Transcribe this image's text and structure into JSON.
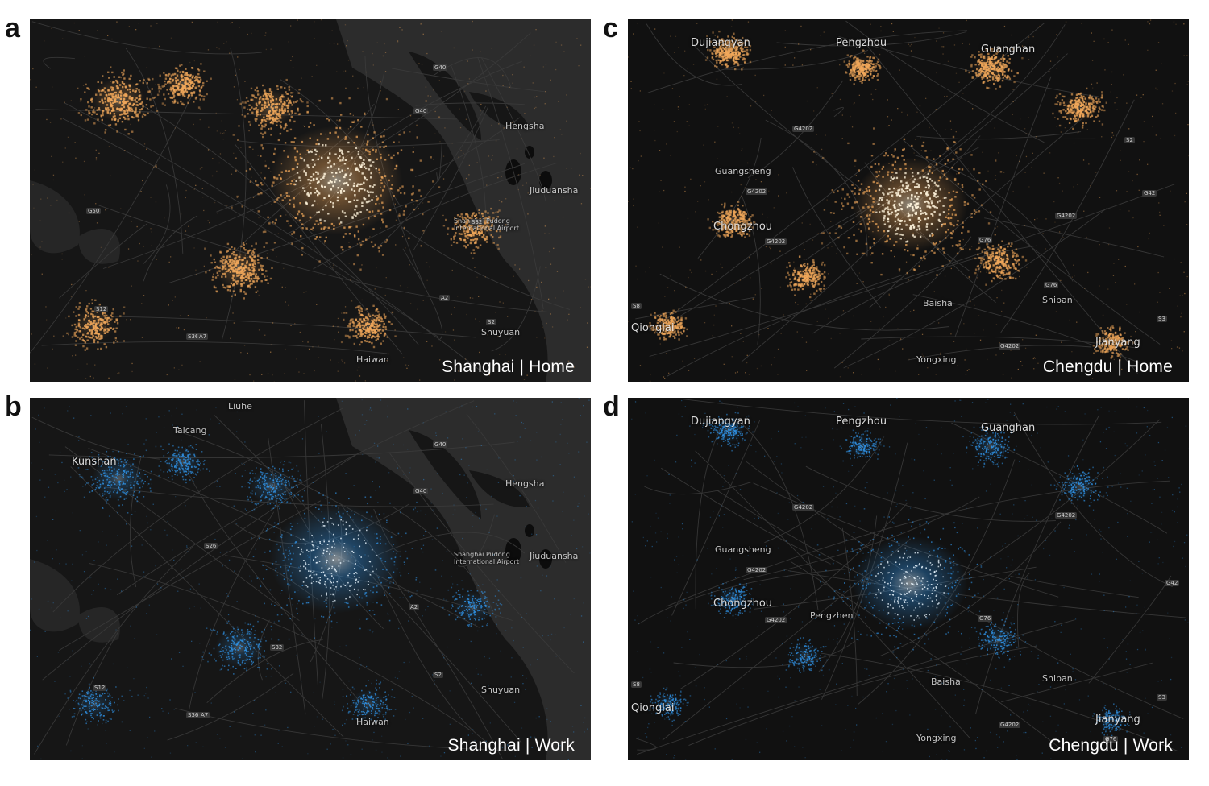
{
  "panels": [
    {
      "letter": "a",
      "caption": "Shanghai | Home",
      "mode": "home",
      "places": [
        "Hengsha",
        "Jiuduansha",
        "Shanghai Pudong International Airport",
        "Shuyuan",
        "Haiwan"
      ],
      "roads": [
        "G40",
        "G40",
        "S32",
        "G50",
        "S12",
        "S36",
        "A2",
        "A7",
        "S2"
      ]
    },
    {
      "letter": "b",
      "caption": "Shanghai | Work",
      "mode": "work",
      "places": [
        "Kunshan",
        "Taicang",
        "Hengsha",
        "Jiuduansha",
        "Shanghai Pudong International Airport",
        "Shuyuan",
        "Haiwan",
        "Liuhe"
      ],
      "roads": [
        "G40",
        "G40",
        "S26",
        "S32",
        "S12",
        "A7",
        "S36",
        "A2",
        "S2"
      ]
    },
    {
      "letter": "c",
      "caption": "Chengdu | Home",
      "mode": "home",
      "places": [
        "Dujiangyan",
        "Pengzhou",
        "Guanghan",
        "Guangsheng",
        "Chongzhou",
        "Qionglai",
        "Baisha",
        "Shipan",
        "Jianyang",
        "Yongxing"
      ],
      "roads": [
        "G4202",
        "G4202",
        "G4202",
        "G4202",
        "S2",
        "G42",
        "G76",
        "G76",
        "S3",
        "S8",
        "G4202"
      ]
    },
    {
      "letter": "d",
      "caption": "Chengdu | Work",
      "mode": "work",
      "places": [
        "Dujiangyan",
        "Pengzhou",
        "Guanghan",
        "Guangsheng",
        "Chongzhou",
        "Qionglai",
        "Baisha",
        "Shipan",
        "Jianyang",
        "Yongxing",
        "Pengzhen"
      ],
      "roads": [
        "G4202",
        "G4202",
        "G4202",
        "G4202",
        "G42",
        "G76",
        "G76",
        "S3",
        "S8",
        "G4202"
      ]
    }
  ],
  "colors": {
    "home": "#f0a75a",
    "home_core": "#fff4dc",
    "work": "#2f8fe0",
    "work_core": "#eaf6ff",
    "land": "#161616",
    "water": "#2c2c2c",
    "roads": "#3b3b3b"
  }
}
